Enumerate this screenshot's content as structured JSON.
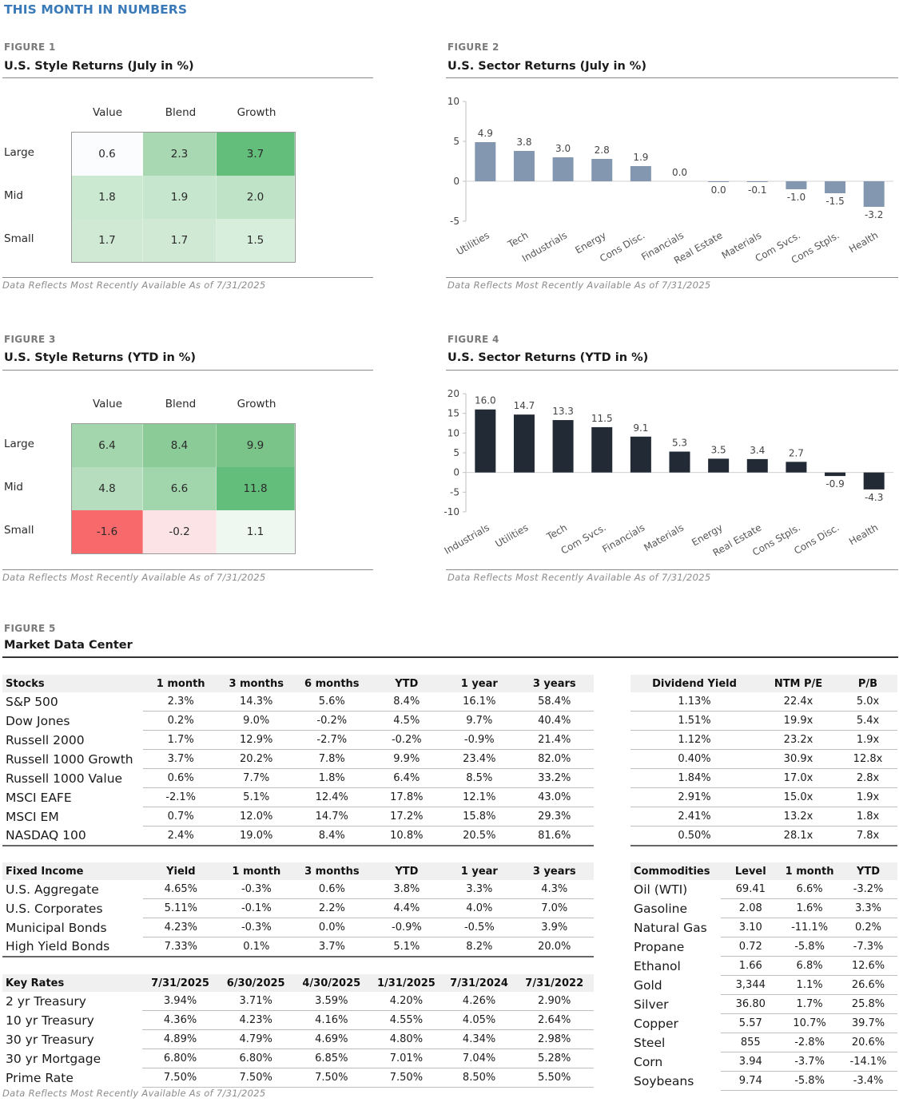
{
  "page_title": "THIS MONTH IN NUMBERS",
  "note": "Data Reflects Most Recently Available As of 7/31/2025",
  "fig1": {
    "label": "FIGURE 1",
    "title": "U.S. Style Returns (July in %)",
    "cols": [
      "Value",
      "Blend",
      "Growth"
    ],
    "rows": [
      "Large",
      "Mid",
      "Small"
    ],
    "cells": [
      [
        "0.6",
        "2.3",
        "3.7"
      ],
      [
        "1.8",
        "1.9",
        "2.0"
      ],
      [
        "1.7",
        "1.7",
        "1.5"
      ]
    ],
    "colors": [
      [
        "#fbfcfd",
        "#a8d8b2",
        "#64be7b"
      ],
      [
        "#cbe8d1",
        "#c6e6cd",
        "#bfe3c7"
      ],
      [
        "#cfe9d4",
        "#cfe9d4",
        "#d8eedc"
      ]
    ]
  },
  "fig3": {
    "label": "FIGURE 3",
    "title": "U.S. Style Returns (YTD in %)",
    "cols": [
      "Value",
      "Blend",
      "Growth"
    ],
    "rows": [
      "Large",
      "Mid",
      "Small"
    ],
    "cells": [
      [
        "6.4",
        "8.4",
        "9.9"
      ],
      [
        "4.8",
        "6.6",
        "11.8"
      ],
      [
        "-1.6",
        "-0.2",
        "1.1"
      ]
    ],
    "colors": [
      [
        "#a3d6ad",
        "#8bcb98",
        "#7ac48a"
      ],
      [
        "#b5ddbe",
        "#a1d5ac",
        "#64be7b"
      ],
      [
        "#f8696b",
        "#fbe3e6",
        "#eff7f1"
      ]
    ]
  },
  "chart_data": [
    {
      "label": "FIGURE 2",
      "type": "bar",
      "title": "U.S. Sector Returns (July in %)",
      "categories": [
        "Utilities",
        "Tech",
        "Industrials",
        "Energy",
        "Cons Disc.",
        "Financials",
        "Real Estate",
        "Materials",
        "Com Svcs.",
        "Cons Stpls.",
        "Health"
      ],
      "values": [
        4.9,
        3.8,
        3.0,
        2.8,
        1.9,
        0.0,
        -0.03,
        -0.1,
        -1.0,
        -1.5,
        -3.2
      ],
      "data_labels": [
        "4.9",
        "3.8",
        "3.0",
        "2.8",
        "1.9",
        "0.0",
        "0.0",
        "-0.1",
        "-1.0",
        "-1.5",
        "-3.2"
      ],
      "ylim": [
        -5,
        10
      ],
      "yticks": [
        -5,
        0,
        5,
        10
      ],
      "color": "#8497b0",
      "grid": false
    },
    {
      "label": "FIGURE 4",
      "type": "bar",
      "title": "U.S. Sector Returns (YTD in %)",
      "categories": [
        "Industrials",
        "Utilities",
        "Tech",
        "Com Svcs.",
        "Financials",
        "Materials",
        "Energy",
        "Real Estate",
        "Cons Stpls.",
        "Cons Disc.",
        "Health"
      ],
      "values": [
        16.0,
        14.7,
        13.3,
        11.5,
        9.1,
        5.3,
        3.5,
        3.4,
        2.7,
        -0.9,
        -4.3
      ],
      "data_labels": [
        "16.0",
        "14.7",
        "13.3",
        "11.5",
        "9.1",
        "5.3",
        "3.5",
        "3.4",
        "2.7",
        "-0.9",
        "-4.3"
      ],
      "ylim": [
        -10,
        20
      ],
      "yticks": [
        -10,
        -5,
        0,
        5,
        10,
        15,
        20
      ],
      "color": "#222a35",
      "grid": false
    }
  ],
  "fig5": {
    "label": "FIGURE 5",
    "title": "Market Data Center",
    "stocks": {
      "headers": [
        "Stocks",
        "1 month",
        "3 months",
        "6 months",
        "YTD",
        "1 year",
        "3 years"
      ],
      "rows": [
        [
          "S&P 500",
          "2.3%",
          "14.3%",
          "5.6%",
          "8.4%",
          "16.1%",
          "58.4%"
        ],
        [
          "Dow Jones",
          "0.2%",
          "9.0%",
          "-0.2%",
          "4.5%",
          "9.7%",
          "40.4%"
        ],
        [
          "Russell 2000",
          "1.7%",
          "12.9%",
          "-2.7%",
          "-0.2%",
          "-0.9%",
          "21.4%"
        ],
        [
          "Russell 1000 Growth",
          "3.7%",
          "20.2%",
          "7.8%",
          "9.9%",
          "23.4%",
          "82.0%"
        ],
        [
          "Russell 1000 Value",
          "0.6%",
          "7.7%",
          "1.8%",
          "6.4%",
          "8.5%",
          "33.2%"
        ],
        [
          "MSCI EAFE",
          "-2.1%",
          "5.1%",
          "12.4%",
          "17.8%",
          "12.1%",
          "43.0%"
        ],
        [
          "MSCI EM",
          "0.7%",
          "12.0%",
          "14.7%",
          "17.2%",
          "15.8%",
          "29.3%"
        ],
        [
          "NASDAQ 100",
          "2.4%",
          "19.0%",
          "8.4%",
          "10.8%",
          "20.5%",
          "81.6%"
        ]
      ]
    },
    "valuation": {
      "headers": [
        "Dividend Yield",
        "NTM P/E",
        "P/B"
      ],
      "rows": [
        [
          "1.13%",
          "22.4x",
          "5.0x"
        ],
        [
          "1.51%",
          "19.9x",
          "5.4x"
        ],
        [
          "1.12%",
          "23.2x",
          "1.9x"
        ],
        [
          "0.40%",
          "30.9x",
          "12.8x"
        ],
        [
          "1.84%",
          "17.0x",
          "2.8x"
        ],
        [
          "2.91%",
          "15.0x",
          "1.9x"
        ],
        [
          "2.41%",
          "13.2x",
          "1.8x"
        ],
        [
          "0.50%",
          "28.1x",
          "7.8x"
        ]
      ]
    },
    "fixed_income": {
      "headers": [
        "Fixed Income",
        "Yield",
        "1 month",
        "3 months",
        "YTD",
        "1 year",
        "3 years"
      ],
      "rows": [
        [
          "U.S. Aggregate",
          "4.65%",
          "-0.3%",
          "0.6%",
          "3.8%",
          "3.3%",
          "4.3%"
        ],
        [
          "U.S. Corporates",
          "5.11%",
          "-0.1%",
          "2.2%",
          "4.4%",
          "4.0%",
          "7.0%"
        ],
        [
          "Municipal Bonds",
          "4.23%",
          "-0.3%",
          "0.0%",
          "-0.9%",
          "-0.5%",
          "3.9%"
        ],
        [
          "High Yield Bonds",
          "7.33%",
          "0.1%",
          "3.7%",
          "5.1%",
          "8.2%",
          "20.0%"
        ]
      ]
    },
    "key_rates": {
      "headers": [
        "Key Rates",
        "7/31/2025",
        "6/30/2025",
        "4/30/2025",
        "1/31/2025",
        "7/31/2024",
        "7/31/2022"
      ],
      "rows": [
        [
          "2 yr Treasury",
          "3.94%",
          "3.71%",
          "3.59%",
          "4.20%",
          "4.26%",
          "2.90%"
        ],
        [
          "10 yr Treasury",
          "4.36%",
          "4.23%",
          "4.16%",
          "4.55%",
          "4.05%",
          "2.64%"
        ],
        [
          "30 yr Treasury",
          "4.89%",
          "4.79%",
          "4.69%",
          "4.80%",
          "4.34%",
          "2.98%"
        ],
        [
          "30 yr Mortgage",
          "6.80%",
          "6.80%",
          "6.85%",
          "7.01%",
          "7.04%",
          "5.28%"
        ],
        [
          "Prime Rate",
          "7.50%",
          "7.50%",
          "7.50%",
          "7.50%",
          "8.50%",
          "5.50%"
        ]
      ]
    },
    "commodities": {
      "headers": [
        "Commodities",
        "Level",
        "1 month",
        "YTD"
      ],
      "rows": [
        [
          "Oil (WTI)",
          "69.41",
          "6.6%",
          "-3.2%"
        ],
        [
          "Gasoline",
          "2.08",
          "1.6%",
          "3.3%"
        ],
        [
          "Natural Gas",
          "3.10",
          "-11.1%",
          "0.2%"
        ],
        [
          "Propane",
          "0.72",
          "-5.8%",
          "-7.3%"
        ],
        [
          "Ethanol",
          "1.66",
          "6.8%",
          "12.6%"
        ],
        [
          "Gold",
          "3,344",
          "1.1%",
          "26.6%"
        ],
        [
          "Silver",
          "36.80",
          "1.7%",
          "25.8%"
        ],
        [
          "Copper",
          "5.57",
          "10.7%",
          "39.7%"
        ],
        [
          "Steel",
          "855",
          "-2.8%",
          "20.6%"
        ],
        [
          "Corn",
          "3.94",
          "-3.7%",
          "-14.1%"
        ],
        [
          "Soybeans",
          "9.74",
          "-5.8%",
          "-3.4%"
        ]
      ]
    }
  }
}
